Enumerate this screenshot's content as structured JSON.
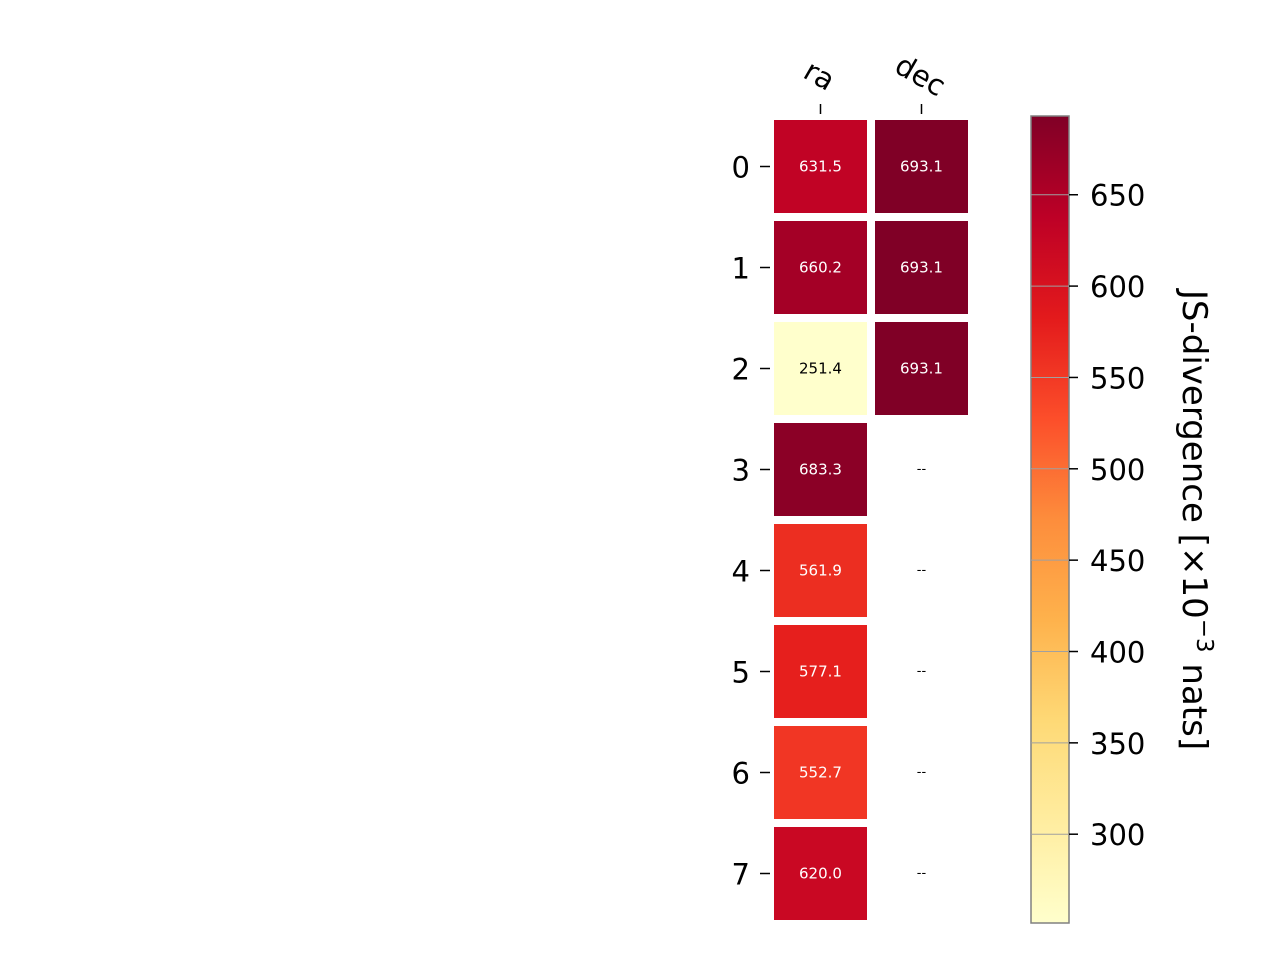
{
  "chart_data": {
    "type": "heatmap",
    "title": "",
    "columns": [
      "ra",
      "dec"
    ],
    "rows": [
      "0",
      "1",
      "2",
      "3",
      "4",
      "5",
      "6",
      "7"
    ],
    "values": [
      [
        631.5,
        693.1
      ],
      [
        660.2,
        693.1
      ],
      [
        251.4,
        693.1
      ],
      [
        683.3,
        null
      ],
      [
        561.9,
        null
      ],
      [
        577.1,
        null
      ],
      [
        552.7,
        null
      ],
      [
        620.0,
        null
      ]
    ],
    "labels": [
      [
        "631.5",
        "693.1"
      ],
      [
        "660.2",
        "693.1"
      ],
      [
        "251.4",
        "693.1"
      ],
      [
        "683.3",
        "--"
      ],
      [
        "561.9",
        "--"
      ],
      [
        "577.1",
        "--"
      ],
      [
        "552.7",
        "--"
      ],
      [
        "620.0",
        "--"
      ]
    ],
    "colorbar": {
      "label": "JS-divergence [×10",
      "label_exponent": "−3",
      "label_suffix": " nats]",
      "range": [
        251.4,
        693.1
      ],
      "ticks": [
        300,
        350,
        400,
        450,
        500,
        550,
        600,
        650
      ],
      "tick_labels": [
        "300",
        "350",
        "400",
        "450",
        "500",
        "550",
        "600",
        "650"
      ],
      "colormap": "YlOrRd",
      "colormap_stops": [
        "#ffffcc",
        "#ffeda0",
        "#fed976",
        "#feb24c",
        "#fd8d3c",
        "#fc4e2a",
        "#e31a1c",
        "#bd0026",
        "#800026"
      ]
    },
    "missing_label_color": "#000000",
    "grid": false,
    "legend": "none"
  }
}
